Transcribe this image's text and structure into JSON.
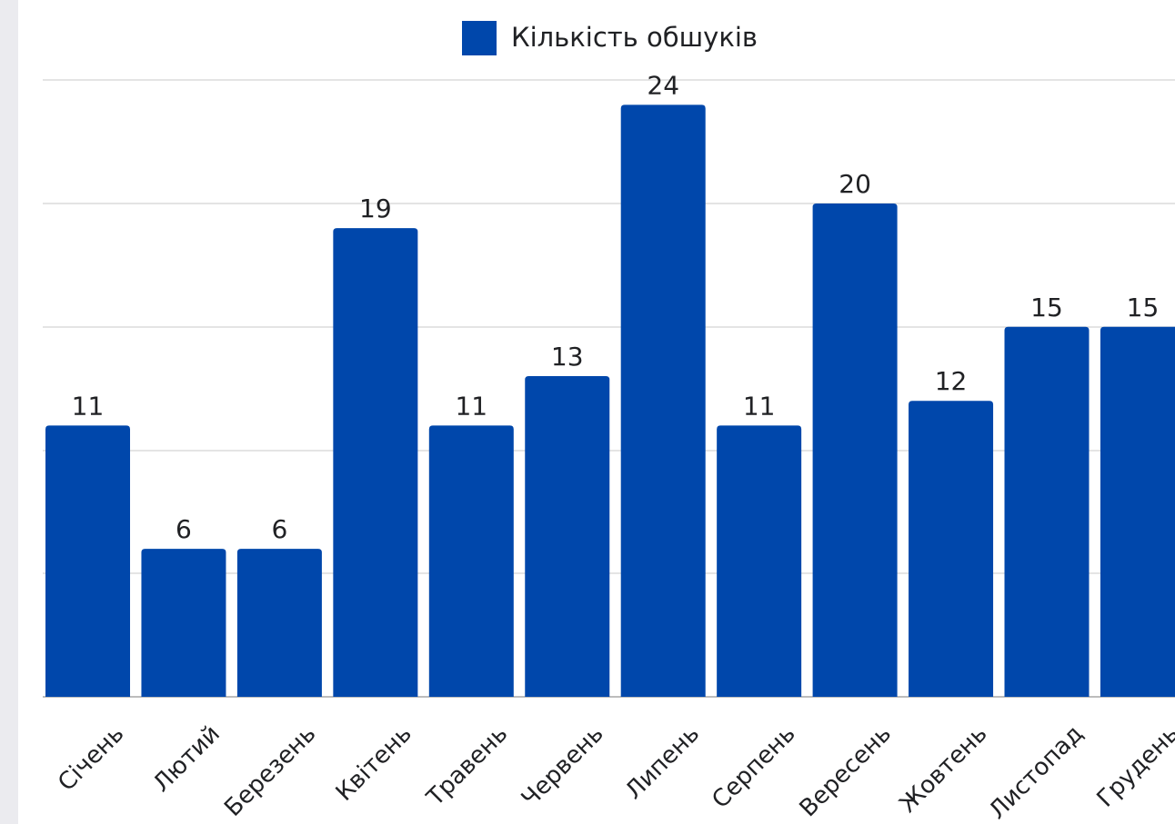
{
  "chart_data": {
    "type": "bar",
    "categories": [
      "Січень",
      "Лютий",
      "Березень",
      "Квітень",
      "Травень",
      "Червень",
      "Липень",
      "Серпень",
      "Вересень",
      "Жовтень",
      "Листопад",
      "Грудень"
    ],
    "series": [
      {
        "name": "Кількість обшуків",
        "values": [
          11,
          6,
          6,
          19,
          11,
          13,
          24,
          11,
          20,
          12,
          15,
          15
        ],
        "color": "#0047ab"
      }
    ],
    "data_labels": true,
    "ylim": [
      0,
      25
    ],
    "grid": true,
    "legend": "top-center",
    "xlabel": "",
    "ylabel": "",
    "title": ""
  }
}
